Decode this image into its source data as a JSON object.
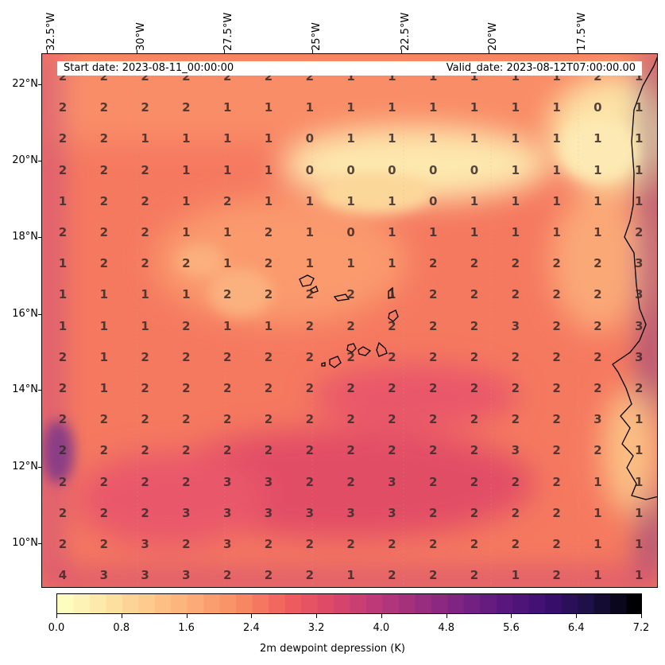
{
  "header": {
    "start_date": "Start date: 2023-08-11_00:00:00",
    "valid_date": "Valid_date: 2023-08-12T07:00:00.00"
  },
  "axes": {
    "lon_labels": [
      "32.5°W",
      "30°W",
      "27.5°W",
      "25°W",
      "22.5°W",
      "20°W",
      "17.5°W"
    ],
    "lat_labels": [
      "22°N",
      "20°N",
      "18°N",
      "16°N",
      "14°N",
      "12°N",
      "10°N"
    ]
  },
  "grid_values": [
    [
      "2",
      "2",
      "2",
      "2",
      "2",
      "2",
      "2",
      "1",
      "1",
      "1",
      "1",
      "1",
      "1",
      "2",
      "1"
    ],
    [
      "2",
      "2",
      "2",
      "2",
      "1",
      "1",
      "1",
      "1",
      "1",
      "1",
      "1",
      "1",
      "1",
      "0",
      "1"
    ],
    [
      "2",
      "2",
      "1",
      "1",
      "1",
      "1",
      "0",
      "1",
      "1",
      "1",
      "1",
      "1",
      "1",
      "1",
      "1"
    ],
    [
      "2",
      "2",
      "2",
      "1",
      "1",
      "1",
      "0",
      "0",
      "0",
      "0",
      "0",
      "1",
      "1",
      "1",
      "1"
    ],
    [
      "1",
      "2",
      "2",
      "1",
      "2",
      "1",
      "1",
      "1",
      "1",
      "0",
      "1",
      "1",
      "1",
      "1",
      "1"
    ],
    [
      "2",
      "2",
      "2",
      "1",
      "1",
      "2",
      "1",
      "0",
      "1",
      "1",
      "1",
      "1",
      "1",
      "1",
      "2"
    ],
    [
      "1",
      "2",
      "2",
      "2",
      "1",
      "2",
      "1",
      "1",
      "1",
      "2",
      "2",
      "2",
      "2",
      "2",
      "3"
    ],
    [
      "1",
      "1",
      "1",
      "1",
      "2",
      "2",
      "2",
      "2",
      "1",
      "2",
      "2",
      "2",
      "2",
      "2",
      "3"
    ],
    [
      "1",
      "1",
      "1",
      "2",
      "1",
      "1",
      "2",
      "2",
      "2",
      "2",
      "2",
      "3",
      "2",
      "2",
      "3"
    ],
    [
      "2",
      "1",
      "2",
      "2",
      "2",
      "2",
      "2",
      "2",
      "2",
      "2",
      "2",
      "2",
      "2",
      "2",
      "3"
    ],
    [
      "2",
      "1",
      "2",
      "2",
      "2",
      "2",
      "2",
      "2",
      "2",
      "2",
      "2",
      "2",
      "2",
      "2",
      "2"
    ],
    [
      "2",
      "2",
      "2",
      "2",
      "2",
      "2",
      "2",
      "2",
      "2",
      "2",
      "2",
      "2",
      "2",
      "3",
      "1"
    ],
    [
      "2",
      "2",
      "2",
      "2",
      "2",
      "2",
      "2",
      "2",
      "2",
      "2",
      "2",
      "3",
      "2",
      "2",
      "1"
    ],
    [
      "2",
      "2",
      "2",
      "2",
      "3",
      "3",
      "2",
      "2",
      "3",
      "2",
      "2",
      "2",
      "2",
      "1",
      "1"
    ],
    [
      "2",
      "2",
      "2",
      "3",
      "3",
      "3",
      "3",
      "3",
      "3",
      "2",
      "2",
      "2",
      "2",
      "1",
      "1"
    ],
    [
      "2",
      "2",
      "3",
      "2",
      "3",
      "2",
      "2",
      "2",
      "2",
      "2",
      "2",
      "2",
      "2",
      "1",
      "1"
    ],
    [
      "4",
      "3",
      "3",
      "3",
      "2",
      "2",
      "2",
      "1",
      "2",
      "2",
      "2",
      "1",
      "2",
      "1",
      "1"
    ]
  ],
  "colorbar": {
    "ticks": [
      "0.0",
      "0.8",
      "1.6",
      "2.4",
      "3.2",
      "4.0",
      "4.8",
      "5.6",
      "6.4",
      "7.2"
    ],
    "label": "2m dewpoint depression (K)",
    "min": 0,
    "max": 7.2,
    "levels": 36,
    "colors": [
      "#fcfdbf",
      "#fde2a3",
      "#fec68a",
      "#fca976",
      "#f88a62",
      "#f1605d",
      "#de4968",
      "#c03a76",
      "#9e2f7f",
      "#7c2382",
      "#5a177e",
      "#3b0f70",
      "#1c1044",
      "#000004"
    ]
  }
}
